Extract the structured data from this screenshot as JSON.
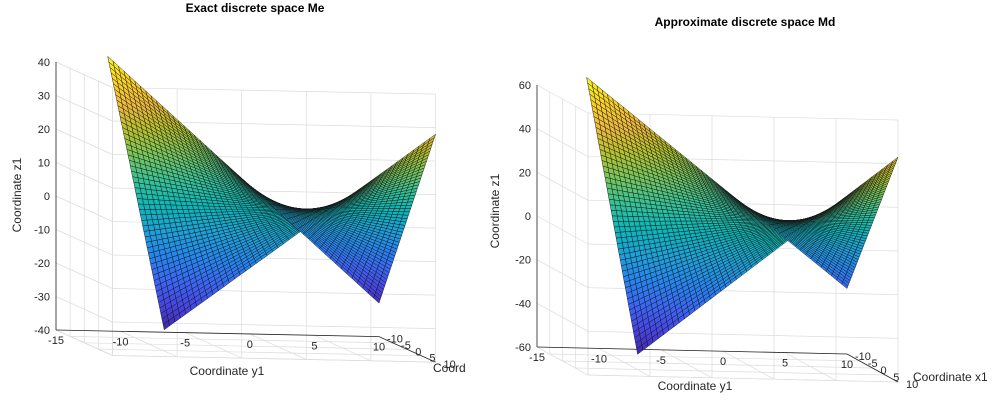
{
  "colors": {
    "colormap": [
      "#3e26a8",
      "#4744e3",
      "#3a66f6",
      "#2485ef",
      "#1da1d8",
      "#09b7b9",
      "#36c296",
      "#75c65c",
      "#b6c12c",
      "#eeb93c",
      "#fcd426",
      "#f9fb15"
    ],
    "mesh": "#141414",
    "axes": "#262626",
    "grid": "#dcdcdc"
  },
  "chart_data": [
    {
      "type": "surface",
      "title": "Exact discrete space Me",
      "xlabel": "Coordinate y1",
      "ylabel": "Coord",
      "zlabel": "Coordinate z1",
      "xlim": [
        -15,
        10
      ],
      "ylim": [
        -10,
        10
      ],
      "zlim": [
        -40,
        40
      ],
      "xticks": [
        "-15",
        "-10",
        "-5",
        "0",
        "5",
        "10"
      ],
      "yticks": [
        "-10",
        "-5",
        "0",
        "5",
        "10"
      ],
      "zticks": [
        "-40",
        "-30",
        "-20",
        "-10",
        "0",
        "10",
        "20",
        "30",
        "40"
      ],
      "surface": {
        "description": "saddle surface",
        "grid": 50,
        "corner_z": {
          "y1_min_x1_min": 42,
          "y1_max_x1_min": -30,
          "y1_min_x1_max": -32,
          "y1_max_x1_max": 28
        },
        "z_range": [
          -32,
          42
        ]
      }
    },
    {
      "type": "surface",
      "title": "Approximate discrete space Md",
      "xlabel": "Coordinate y1",
      "ylabel": "Coordinate x1",
      "zlabel": "Coordinate z1",
      "xlim": [
        -15,
        10
      ],
      "ylim": [
        -10,
        10
      ],
      "zlim": [
        -60,
        60
      ],
      "xticks": [
        "-15",
        "-10",
        "-5",
        "0",
        "5",
        "10"
      ],
      "yticks": [
        "-10",
        "-5",
        "0",
        "5",
        "10"
      ],
      "zticks": [
        "-60",
        "-40",
        "-20",
        "0",
        "20",
        "40",
        "60"
      ],
      "surface": {
        "description": "saddle surface",
        "grid": 50,
        "corner_z": {
          "y1_min_x1_min": 64,
          "y1_max_x1_min": -30,
          "y1_min_x1_max": -50,
          "y1_max_x1_max": 43
        },
        "z_range": [
          -50,
          64
        ]
      }
    }
  ]
}
